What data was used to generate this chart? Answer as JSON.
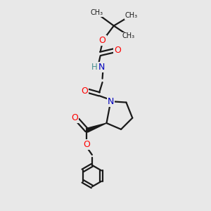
{
  "background_color": "#e8e8e8",
  "bond_color": "#1a1a1a",
  "oxygen_color": "#ff0000",
  "nitrogen_color": "#0000bb",
  "nh_color": "#4a9090",
  "text_color": "#1a1a1a",
  "figsize": [
    3.0,
    3.0
  ],
  "dpi": 100,
  "xlim": [
    0,
    10
  ],
  "ylim": [
    0,
    10
  ]
}
